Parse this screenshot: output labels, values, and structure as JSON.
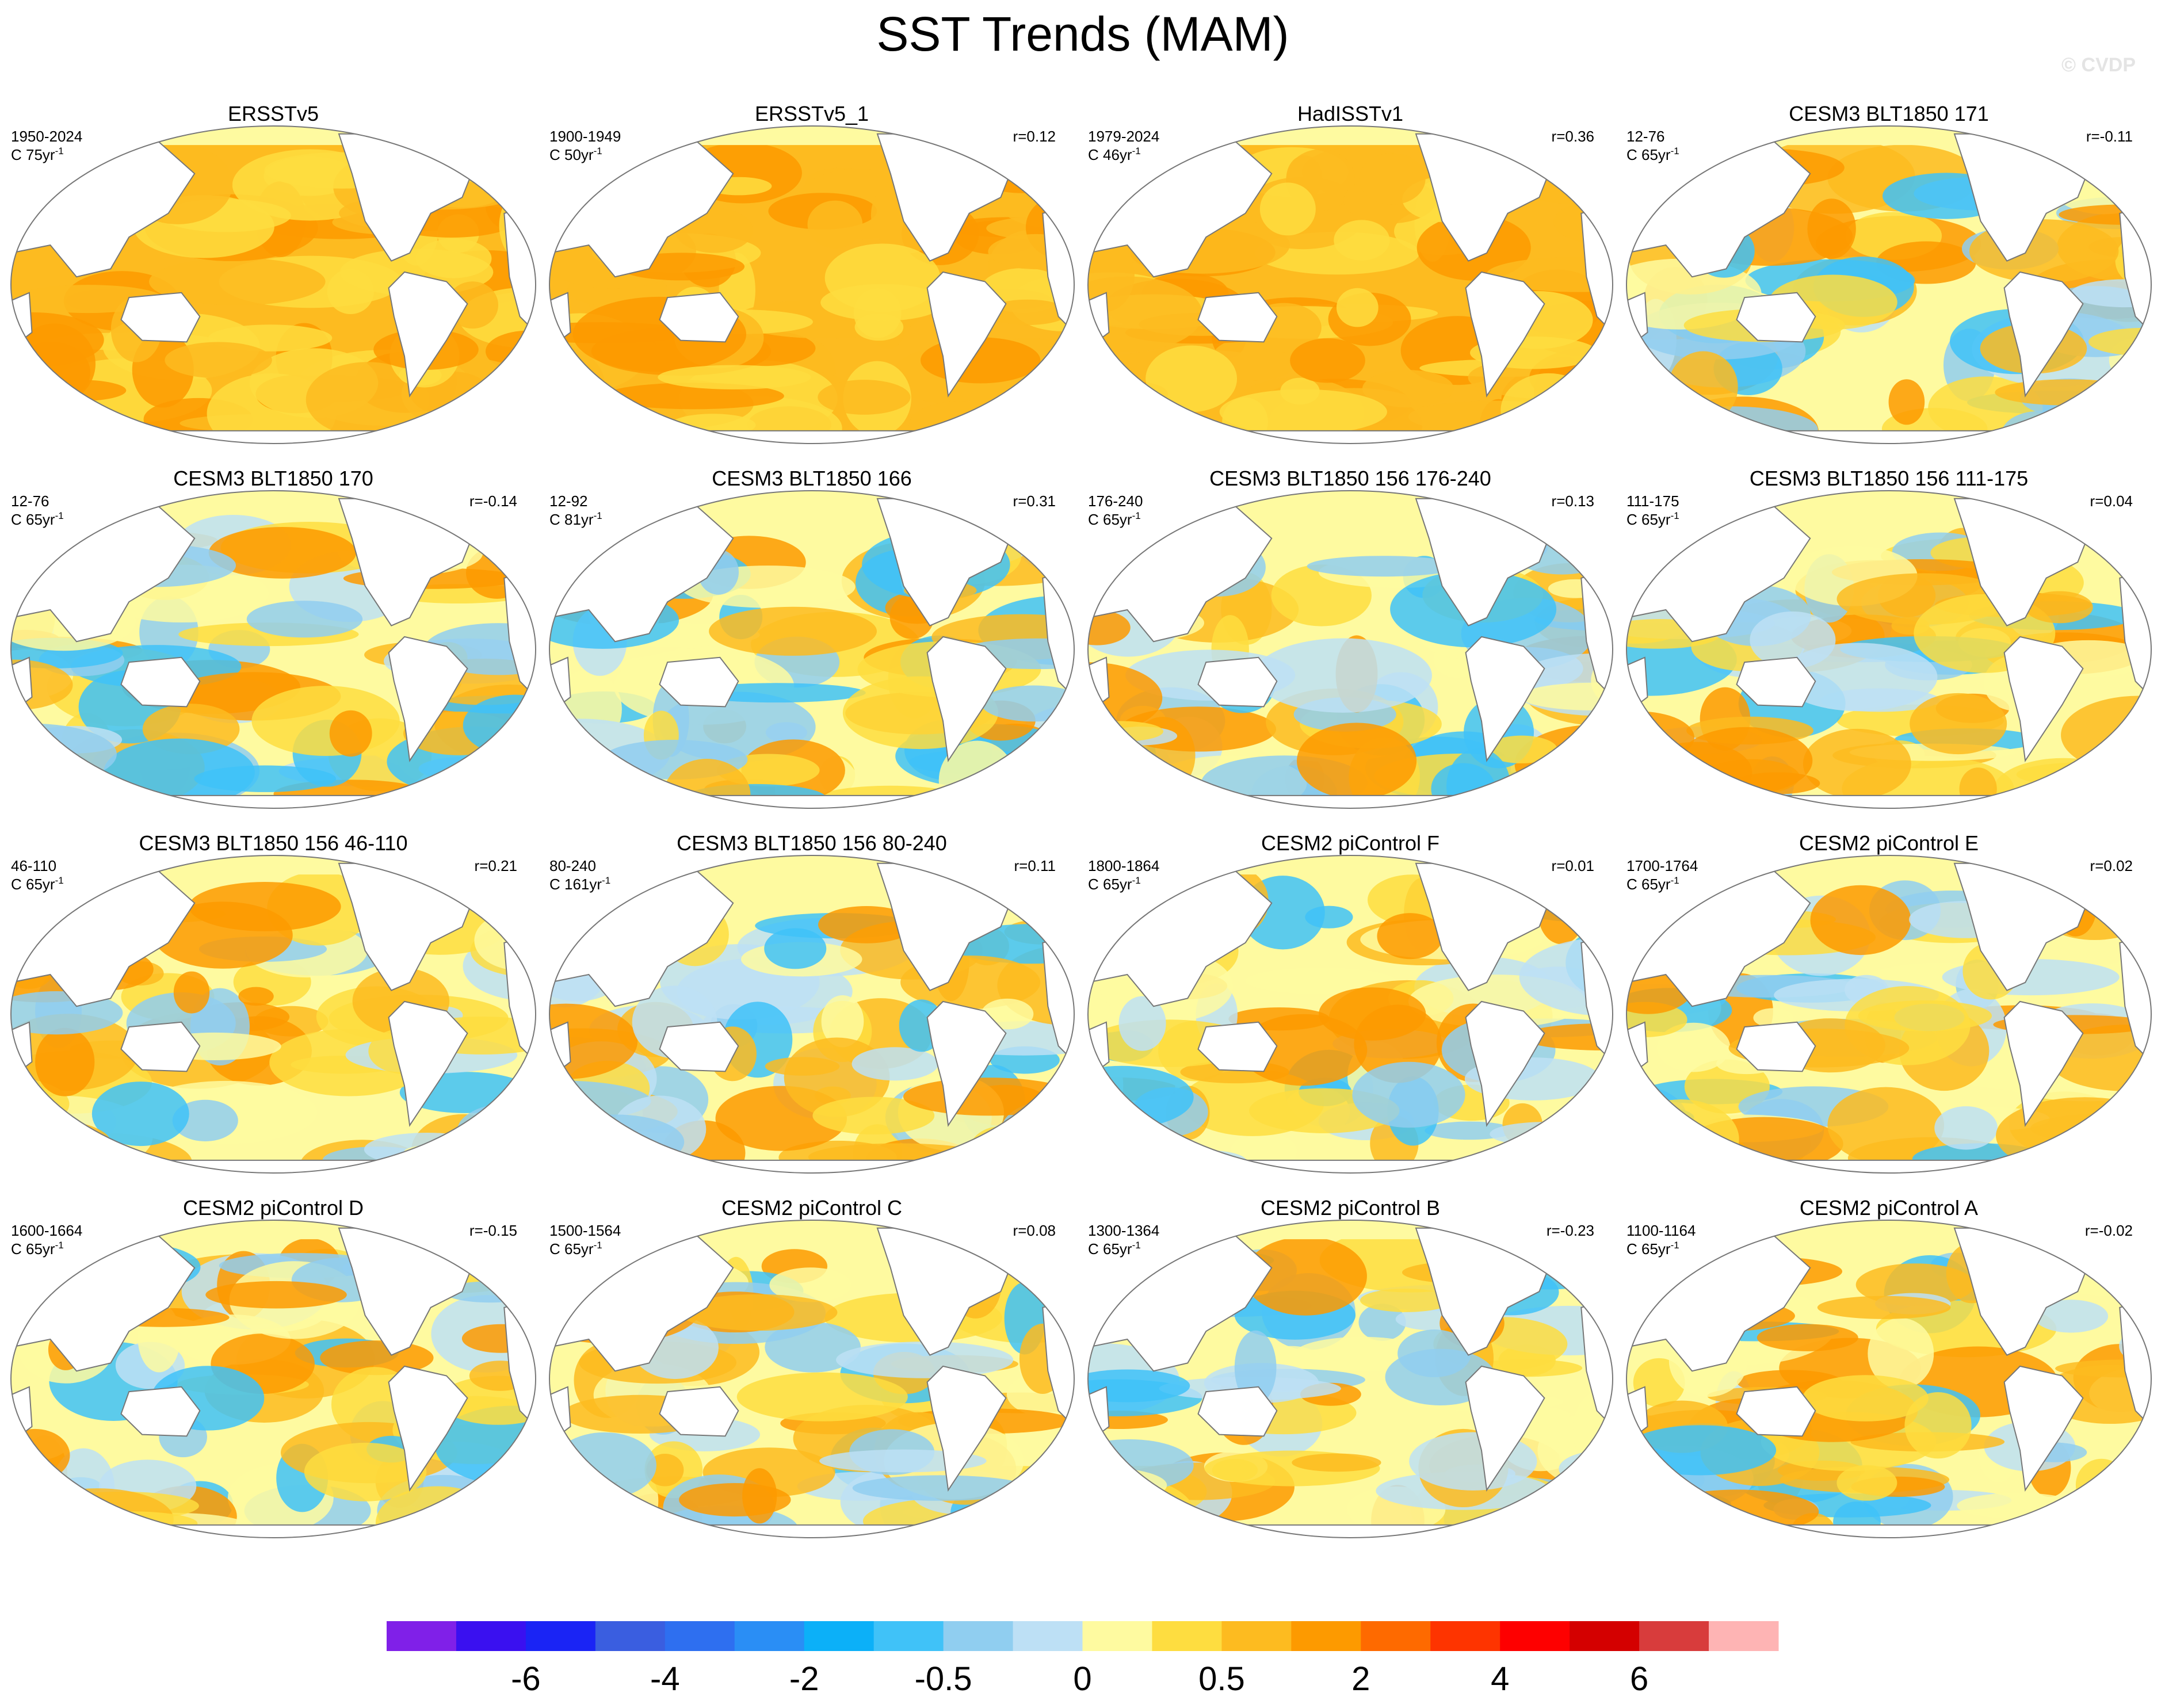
{
  "title": "SST Trends (MAM)",
  "watermark": "© CVDP",
  "panels": [
    {
      "title": "ERSSTv5",
      "period": "1950-2024",
      "length": "C 75yr",
      "exponent": "-1"
    },
    {
      "title": "ERSSTv5_1",
      "period": "1900-1949",
      "length": "C 50yr",
      "exponent": "-1",
      "r": "r=0.12"
    },
    {
      "title": "HadISSTv1",
      "period": "1979-2024",
      "length": "C 46yr",
      "exponent": "-1",
      "r": "r=0.36"
    },
    {
      "title": "CESM3 BLT1850 171",
      "period": "12-76",
      "length": "C 65yr",
      "exponent": "-1",
      "r": "r=-0.11"
    },
    {
      "title": "CESM3 BLT1850 170",
      "period": "12-76",
      "length": "C 65yr",
      "exponent": "-1",
      "r": "r=-0.14"
    },
    {
      "title": "CESM3 BLT1850 166",
      "period": "12-92",
      "length": "C 81yr",
      "exponent": "-1",
      "r": "r=0.31"
    },
    {
      "title": "CESM3 BLT1850 156 176-240",
      "period": "176-240",
      "length": "C 65yr",
      "exponent": "-1",
      "r": "r=0.13"
    },
    {
      "title": "CESM3 BLT1850 156 111-175",
      "period": "111-175",
      "length": "C 65yr",
      "exponent": "-1",
      "r": "r=0.04"
    },
    {
      "title": "CESM3 BLT1850 156 46-110",
      "period": "46-110",
      "length": "C 65yr",
      "exponent": "-1",
      "r": "r=0.21"
    },
    {
      "title": "CESM3 BLT1850 156 80-240",
      "period": "80-240",
      "length": "C 161yr",
      "exponent": "-1",
      "r": "r=0.11"
    },
    {
      "title": "CESM2 piControl F",
      "period": "1800-1864",
      "length": "C 65yr",
      "exponent": "-1",
      "r": "r=0.01"
    },
    {
      "title": "CESM2 piControl E",
      "period": "1700-1764",
      "length": "C 65yr",
      "exponent": "-1",
      "r": "r=0.02"
    },
    {
      "title": "CESM2 piControl D",
      "period": "1600-1664",
      "length": "C 65yr",
      "exponent": "-1",
      "r": "r=-0.15"
    },
    {
      "title": "CESM2 piControl C",
      "period": "1500-1564",
      "length": "C 65yr",
      "exponent": "-1",
      "r": "r=0.08"
    },
    {
      "title": "CESM2 piControl B",
      "period": "1300-1364",
      "length": "C 65yr",
      "exponent": "-1",
      "r": "r=-0.23"
    },
    {
      "title": "CESM2 piControl A",
      "period": "1100-1164",
      "length": "C 65yr",
      "exponent": "-1",
      "r": "r=-0.02"
    }
  ],
  "colorbar": {
    "colors": [
      "#8020e8",
      "#3a10f0",
      "#1a24f5",
      "#3a5ee0",
      "#2e6ff0",
      "#2a8ef5",
      "#0cb0f8",
      "#40c2f8",
      "#90cef0",
      "#bde0f5",
      "#fefaa0",
      "#fedd40",
      "#fdbb20",
      "#fd9a00",
      "#fe6a00",
      "#fe3400",
      "#fe0000",
      "#d40000",
      "#d83c3c",
      "#feb4b4"
    ],
    "ticks": [
      -6,
      -4,
      -2,
      -0.5,
      0,
      0.5,
      2,
      4,
      6
    ]
  }
}
